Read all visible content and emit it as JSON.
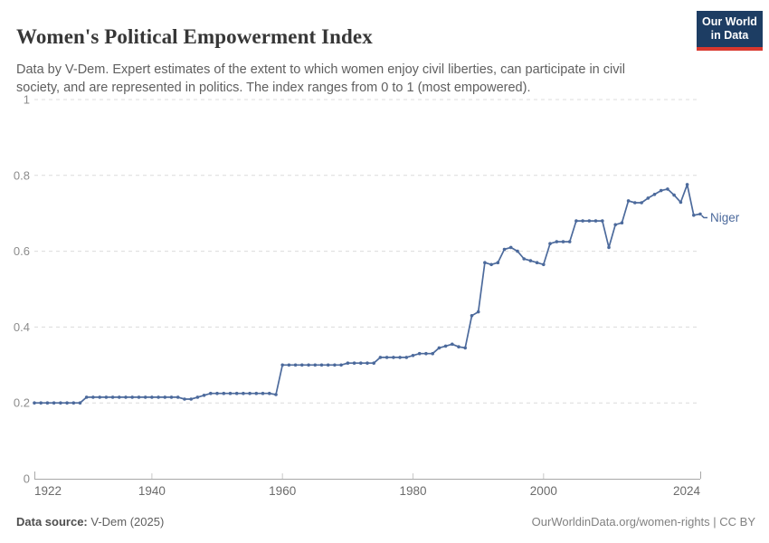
{
  "header": {
    "title": "Women's Political Empowerment Index",
    "subtitle": "Data by V-Dem. Expert estimates of the extent to which women enjoy civil liberties, can participate in civil society, and are represented in politics. The index ranges from 0 to 1 (most empowered).",
    "logo": {
      "line1": "Our World",
      "line2": "in Data",
      "bg_color": "#1d3d63",
      "accent_color": "#d9382e"
    }
  },
  "chart_data": {
    "type": "line",
    "title": "Women's Political Empowerment Index",
    "xlabel": "",
    "ylabel": "",
    "x_range": [
      1922,
      2024
    ],
    "x_interval": 1,
    "ylim": [
      0,
      1
    ],
    "grid": "horizontal-dashed",
    "legend_position": "end-of-line-label",
    "yticks": [
      {
        "value": 0,
        "label": "0"
      },
      {
        "value": 0.2,
        "label": "0.2"
      },
      {
        "value": 0.4,
        "label": "0.4"
      },
      {
        "value": 0.6,
        "label": "0.6"
      },
      {
        "value": 0.8,
        "label": "0.8"
      },
      {
        "value": 1,
        "label": "1"
      }
    ],
    "xticks": [
      {
        "value": 1922,
        "label": "1922"
      },
      {
        "value": 1940,
        "label": "1940"
      },
      {
        "value": 1960,
        "label": "1960"
      },
      {
        "value": 1980,
        "label": "1980"
      },
      {
        "value": 2000,
        "label": "2000"
      },
      {
        "value": 2024,
        "label": "2024"
      }
    ],
    "series": [
      {
        "name": "Niger",
        "color": "#4c6a9c",
        "values": [
          0.2,
          0.2,
          0.2,
          0.2,
          0.2,
          0.2,
          0.2,
          0.2,
          0.215,
          0.215,
          0.215,
          0.215,
          0.215,
          0.215,
          0.215,
          0.215,
          0.215,
          0.215,
          0.215,
          0.215,
          0.215,
          0.215,
          0.215,
          0.21,
          0.21,
          0.215,
          0.22,
          0.225,
          0.225,
          0.225,
          0.225,
          0.225,
          0.225,
          0.225,
          0.225,
          0.225,
          0.225,
          0.222,
          0.3,
          0.3,
          0.3,
          0.3,
          0.3,
          0.3,
          0.3,
          0.3,
          0.3,
          0.3,
          0.305,
          0.305,
          0.305,
          0.305,
          0.305,
          0.32,
          0.32,
          0.32,
          0.32,
          0.32,
          0.325,
          0.33,
          0.33,
          0.33,
          0.345,
          0.35,
          0.355,
          0.348,
          0.345,
          0.43,
          0.44,
          0.57,
          0.565,
          0.57,
          0.605,
          0.61,
          0.6,
          0.58,
          0.575,
          0.57,
          0.565,
          0.62,
          0.625,
          0.625,
          0.625,
          0.68,
          0.68,
          0.68,
          0.68,
          0.68,
          0.61,
          0.67,
          0.675,
          0.733,
          0.728,
          0.728,
          0.74,
          0.75,
          0.76,
          0.764,
          0.748,
          0.729,
          0.776,
          0.695,
          0.698
        ]
      }
    ],
    "end_label": "Niger",
    "colors": {
      "line": "#4c6a9c",
      "gridline": "#dcdcdc",
      "axis": "#a8a8a8",
      "tick": "#c9c9c9",
      "y_tick_label": "#8c8c8c",
      "x_tick_label": "#6b6b6b"
    }
  },
  "footer": {
    "source_label": "Data source:",
    "source_value": " V-Dem (2025)",
    "right_text": "OurWorldinData.org/women-rights | CC BY"
  }
}
